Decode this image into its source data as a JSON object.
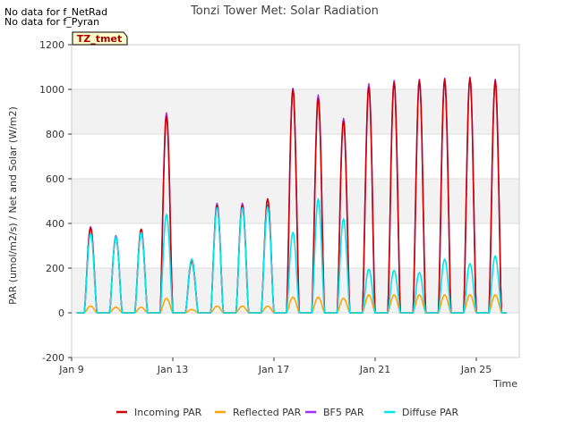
{
  "notes": [
    "No data for f_NetRad",
    "No data for f_Pyran"
  ],
  "chart_data": {
    "type": "line",
    "title": "Tonzi Tower Met: Solar Radiation",
    "xlabel": "Time",
    "ylabel": "PAR (umol/m2/s) / Net and Solar (W/m2)",
    "site_label": "TZ_tmet",
    "ylim": [
      -200,
      1200
    ],
    "yticks": [
      -200,
      0,
      200,
      400,
      600,
      800,
      1000,
      1200
    ],
    "xlim": [
      9,
      26.7
    ],
    "xticks": [
      {
        "x": 9,
        "label": "Jan 9"
      },
      {
        "x": 13,
        "label": "Jan 13"
      },
      {
        "x": 17,
        "label": "Jan 17"
      },
      {
        "x": 21,
        "label": "Jan 21"
      },
      {
        "x": 25,
        "label": "Jan 25"
      }
    ],
    "grid": true,
    "legend_position": "bottom",
    "days": [
      9.75,
      10.75,
      11.75,
      12.75,
      13.75,
      14.75,
      15.75,
      16.75,
      17.75,
      18.75,
      19.75,
      20.75,
      21.75,
      22.75,
      23.75,
      24.75,
      25.75
    ],
    "series": [
      {
        "name": "Incoming PAR",
        "color": "#cc0000",
        "daily_peaks": [
          380,
          340,
          375,
          880,
          230,
          480,
          480,
          510,
          1000,
          960,
          860,
          1010,
          1030,
          1040,
          1045,
          1050,
          1040
        ]
      },
      {
        "name": "Reflected PAR",
        "color": "#ffa500",
        "daily_peaks": [
          30,
          25,
          25,
          65,
          15,
          30,
          30,
          30,
          70,
          70,
          65,
          80,
          80,
          80,
          80,
          80,
          80
        ]
      },
      {
        "name": "BF5 PAR",
        "color": "#9b30ff",
        "daily_peaks": [
          385,
          345,
          360,
          895,
          240,
          490,
          490,
          480,
          1005,
          975,
          870,
          1025,
          1040,
          1045,
          1050,
          1055,
          1045
        ]
      },
      {
        "name": "Diffuse PAR",
        "color": "#00e5ee",
        "daily_peaks": [
          355,
          340,
          360,
          440,
          240,
          470,
          470,
          475,
          360,
          510,
          420,
          195,
          190,
          180,
          240,
          220,
          255
        ]
      }
    ]
  }
}
